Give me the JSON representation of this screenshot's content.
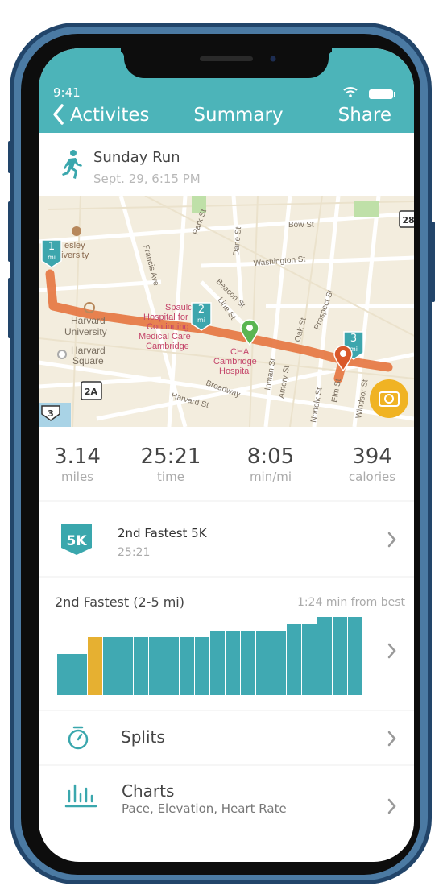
{
  "status_bar": {
    "time": "9:41"
  },
  "nav": {
    "back": "Activites",
    "title": "Summary",
    "action": "Share"
  },
  "activity": {
    "name": "Sunday Run",
    "date": "Sept. 29, 6:15 PM"
  },
  "map": {
    "labels": [
      "Bow St",
      "Washington St",
      "Park St",
      "Dane St",
      "Beacon St",
      "Prospect St",
      "Broadway",
      "Harvard St",
      "Harvard",
      "University",
      "Harvard",
      "Square",
      "Inman St",
      "Amory St",
      "Oak St",
      "Francis Ave",
      "Line St",
      "Windsor St",
      "Elm St",
      "Norfolk St"
    ],
    "poi_labels": [
      "Spaulding",
      "Hospital for",
      "Continuing",
      "Medical Care",
      "Cambridge",
      "CHA",
      "Cambridge",
      "Hospital",
      "esley",
      "iversity"
    ],
    "mile_markers": [
      {
        "number": "1",
        "unit": "mi"
      },
      {
        "number": "2",
        "unit": "mi"
      },
      {
        "number": "3",
        "unit": "mi"
      }
    ],
    "route_badges": [
      "28",
      "2A",
      "3"
    ]
  },
  "stats": [
    {
      "value": "3.14",
      "unit": "miles"
    },
    {
      "value": "25:21",
      "unit": "time"
    },
    {
      "value": "8:05",
      "unit": "min/mi"
    },
    {
      "value": "394",
      "unit": "calories"
    }
  ],
  "achievement": {
    "badge": "5K",
    "title": "2nd Fastest 5K",
    "subtitle": "25:21"
  },
  "comparison": {
    "title": "2nd Fastest (2-5 mi)",
    "note": "1:24 min from best",
    "bars": [
      51,
      51,
      72,
      72,
      72,
      72,
      72,
      72,
      72,
      72,
      79,
      79,
      79,
      79,
      79,
      88,
      88,
      97,
      97,
      97
    ],
    "highlight_index": 2,
    "color": "#40a9b2",
    "highlight_color": "#e6b031"
  },
  "menu": [
    {
      "label": "Splits"
    },
    {
      "label": "Charts",
      "subtitle": "Pace, Elevation, Heart Rate"
    }
  ]
}
